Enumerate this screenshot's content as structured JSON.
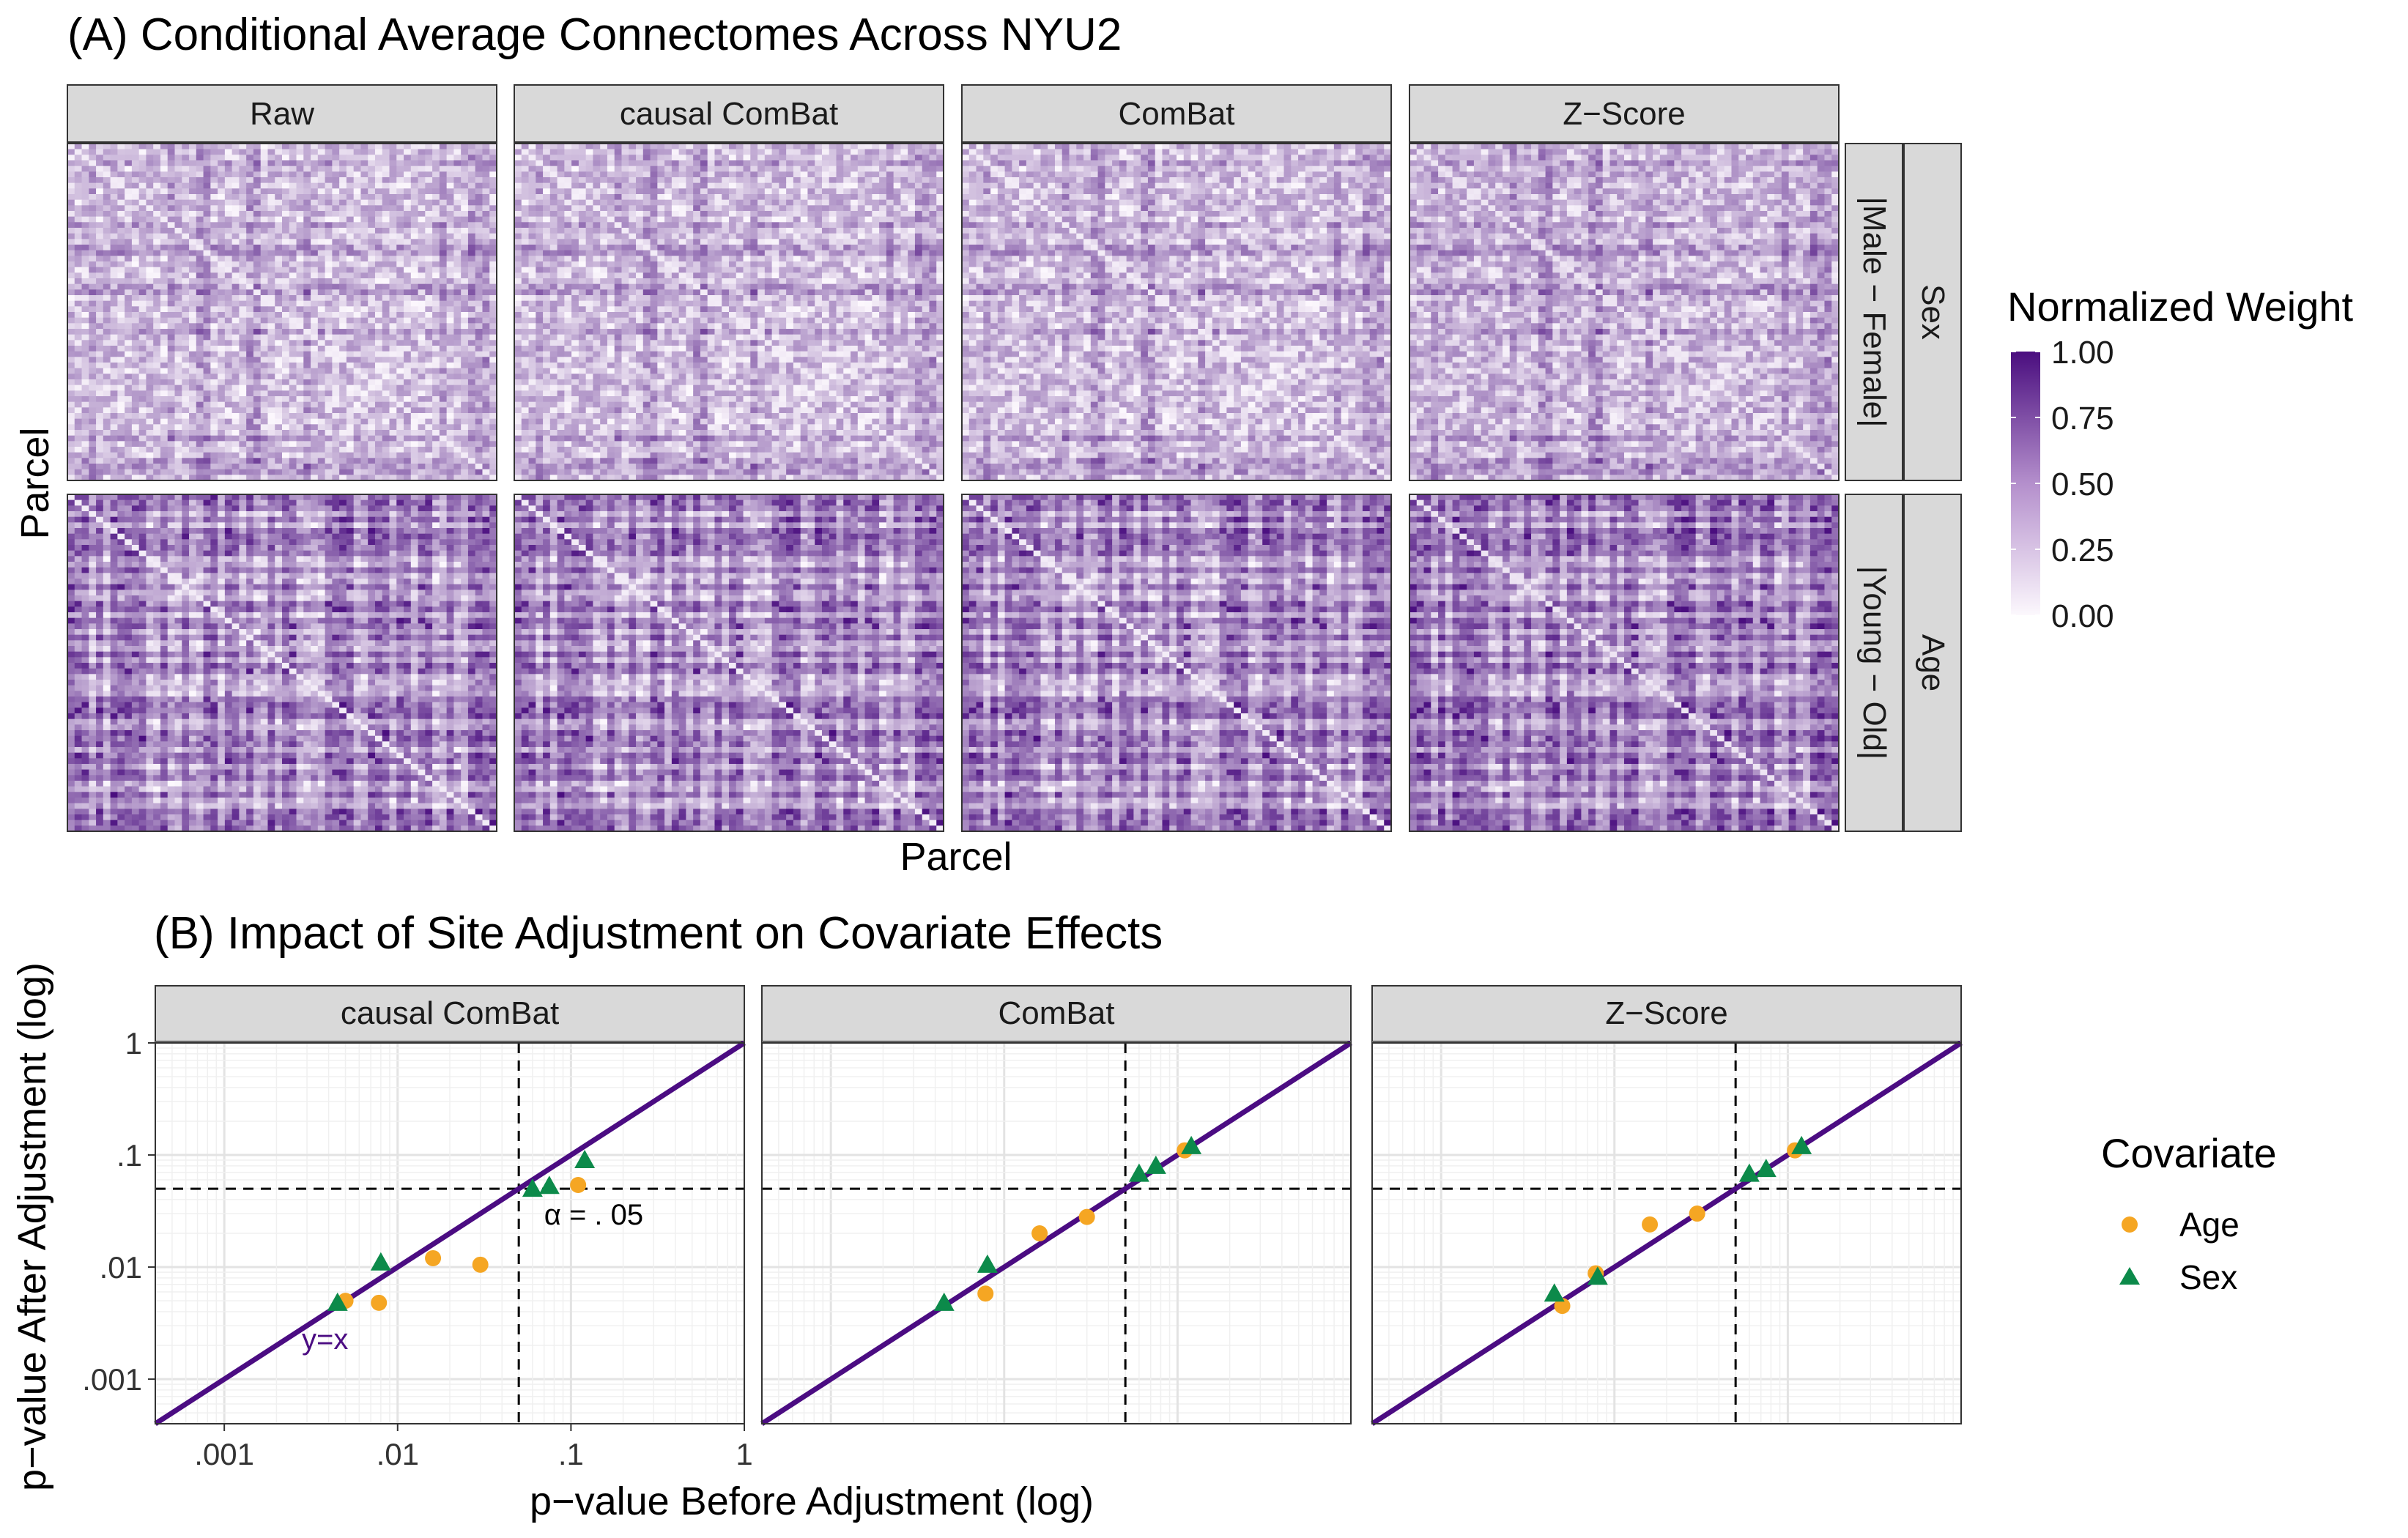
{
  "panel_a": {
    "title": "(A) Conditional Average Connectomes Across NYU2",
    "xlabel": "Parcel",
    "ylabel": "Parcel",
    "col_strips": [
      "Raw",
      "causal ComBat",
      "ComBat",
      "Z−Score"
    ],
    "row_strips_inner": [
      "|Male − Female|",
      "|Young − Old|"
    ],
    "row_strips_outer": [
      "Sex",
      "Age"
    ]
  },
  "legend_a": {
    "title": "Normalized Weight",
    "ticks": [
      "1.00",
      "0.75",
      "0.50",
      "0.25",
      "0.00"
    ],
    "low_color": "#fcf8fd",
    "high_color": "#4a0e7f"
  },
  "panel_b": {
    "title": "(B) Impact of Site Adjustment on Covariate Effects",
    "xlabel": "p−value Before Adjustment (log)",
    "ylabel": "p−value After Adjustment (log)",
    "alpha_label": "α = . 05",
    "identity_label": "y=x"
  },
  "legend_b": {
    "title": "Covariate",
    "items": [
      {
        "label": "Age",
        "shape": "circle",
        "color": "#f5a623"
      },
      {
        "label": "Sex",
        "shape": "triangle",
        "color": "#0c8a4a"
      }
    ]
  },
  "chart_data": [
    {
      "type": "heatmap",
      "title": "(A) Conditional Average Connectomes Across NYU2",
      "xlabel": "Parcel",
      "ylabel": "Parcel",
      "facet_cols": [
        "Raw",
        "causal ComBat",
        "ComBat",
        "Z−Score"
      ],
      "facet_rows": [
        {
          "covariate": "Sex",
          "contrast": "|Male − Female|"
        },
        {
          "covariate": "Age",
          "contrast": "|Young − Old|"
        }
      ],
      "color_scale": {
        "title": "Normalized Weight",
        "range": [
          0,
          1
        ],
        "ticks": [
          0,
          0.25,
          0.5,
          0.75,
          1.0
        ]
      }
    },
    {
      "type": "scatter",
      "title": "(B) Impact of Site Adjustment on Covariate Effects",
      "xlabel": "p−value Before Adjustment (log)",
      "ylabel": "p−value After Adjustment (log)",
      "xscale": "log",
      "yscale": "log",
      "xlim": [
        0.0004,
        1
      ],
      "ylim": [
        0.0004,
        1
      ],
      "xticks": [
        ".001",
        ".01",
        ".1",
        "1"
      ],
      "yticks": [
        "1",
        ".1",
        ".01",
        ".001"
      ],
      "grid": true,
      "reference_lines": {
        "identity": "y=x",
        "alpha": 0.05
      },
      "facets": [
        {
          "name": "causal ComBat",
          "series": [
            {
              "name": "Age",
              "shape": "circle",
              "color": "#f5a623",
              "x": [
                0.005,
                0.0078,
                0.016,
                0.03,
                0.11
              ],
              "y": [
                0.005,
                0.0048,
                0.012,
                0.0105,
                0.054
              ]
            },
            {
              "name": "Sex",
              "shape": "triangle",
              "color": "#0c8a4a",
              "x": [
                0.0045,
                0.008,
                0.06,
                0.075,
                0.12
              ],
              "y": [
                0.0048,
                0.011,
                0.05,
                0.053,
                0.09
              ]
            }
          ]
        },
        {
          "name": "ComBat",
          "series": [
            {
              "name": "Age",
              "shape": "circle",
              "color": "#f5a623",
              "x": [
                0.0078,
                0.016,
                0.03,
                0.11
              ],
              "y": [
                0.0058,
                0.02,
                0.028,
                0.11
              ]
            },
            {
              "name": "Sex",
              "shape": "triangle",
              "color": "#0c8a4a",
              "x": [
                0.0045,
                0.008,
                0.06,
                0.075,
                0.12
              ],
              "y": [
                0.0048,
                0.0105,
                0.068,
                0.08,
                0.12
              ]
            }
          ]
        },
        {
          "name": "Z−Score",
          "series": [
            {
              "name": "Age",
              "shape": "circle",
              "color": "#f5a623",
              "x": [
                0.005,
                0.0078,
                0.016,
                0.03,
                0.11
              ],
              "y": [
                0.0045,
                0.0088,
                0.024,
                0.03,
                0.11
              ]
            },
            {
              "name": "Sex",
              "shape": "triangle",
              "color": "#0c8a4a",
              "x": [
                0.0045,
                0.008,
                0.06,
                0.075,
                0.12
              ],
              "y": [
                0.0058,
                0.0082,
                0.068,
                0.075,
                0.12
              ]
            }
          ]
        }
      ]
    }
  ]
}
